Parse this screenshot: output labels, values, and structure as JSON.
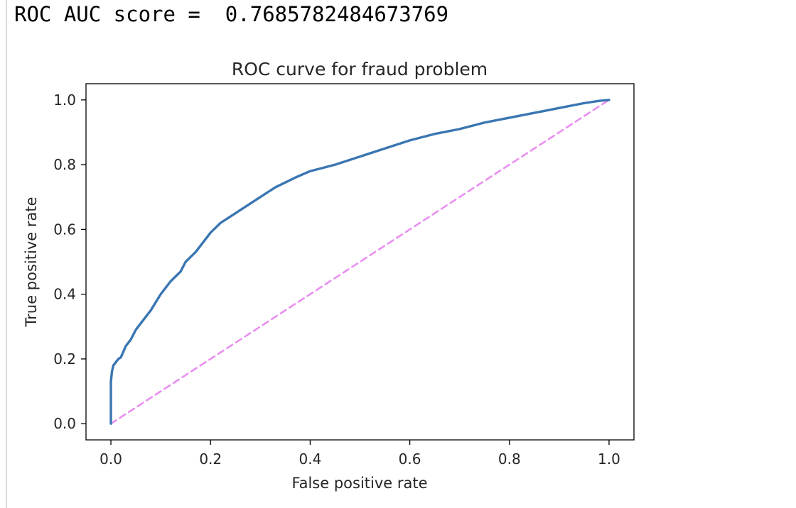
{
  "output": {
    "text": "ROC AUC score =  0.7685782484673769"
  },
  "colors": {
    "curve": "#3a76b2",
    "diagonal": "#e98ff0",
    "axis": "#000000",
    "text": "#262626"
  },
  "chart_data": {
    "type": "line",
    "title": "ROC curve for fraud problem",
    "xlabel": "False positive rate",
    "ylabel": "True positive rate",
    "xlim": [
      -0.05,
      1.05
    ],
    "ylim": [
      -0.05,
      1.05
    ],
    "xticks": [
      "0.0",
      "0.2",
      "0.4",
      "0.6",
      "0.8",
      "1.0"
    ],
    "yticks": [
      "0.0",
      "0.2",
      "0.4",
      "0.6",
      "0.8",
      "1.0"
    ],
    "grid": false,
    "series": [
      {
        "style": "solid",
        "x": [
          0.0,
          0.0,
          0.0,
          0.002,
          0.005,
          0.01,
          0.015,
          0.02,
          0.03,
          0.04,
          0.05,
          0.06,
          0.07,
          0.08,
          0.1,
          0.12,
          0.14,
          0.15,
          0.17,
          0.18,
          0.2,
          0.22,
          0.25,
          0.28,
          0.3,
          0.33,
          0.37,
          0.4,
          0.45,
          0.5,
          0.55,
          0.6,
          0.65,
          0.7,
          0.75,
          0.8,
          0.85,
          0.9,
          0.95,
          0.98,
          1.0
        ],
        "y": [
          0.0,
          0.08,
          0.13,
          0.16,
          0.18,
          0.19,
          0.2,
          0.205,
          0.24,
          0.26,
          0.29,
          0.31,
          0.33,
          0.35,
          0.4,
          0.44,
          0.47,
          0.5,
          0.53,
          0.55,
          0.59,
          0.62,
          0.65,
          0.68,
          0.7,
          0.73,
          0.76,
          0.78,
          0.8,
          0.825,
          0.85,
          0.875,
          0.895,
          0.91,
          0.93,
          0.945,
          0.96,
          0.975,
          0.99,
          0.997,
          1.0
        ]
      },
      {
        "style": "dashed",
        "x": [
          0.0,
          1.0
        ],
        "y": [
          0.0,
          1.0
        ]
      }
    ]
  }
}
